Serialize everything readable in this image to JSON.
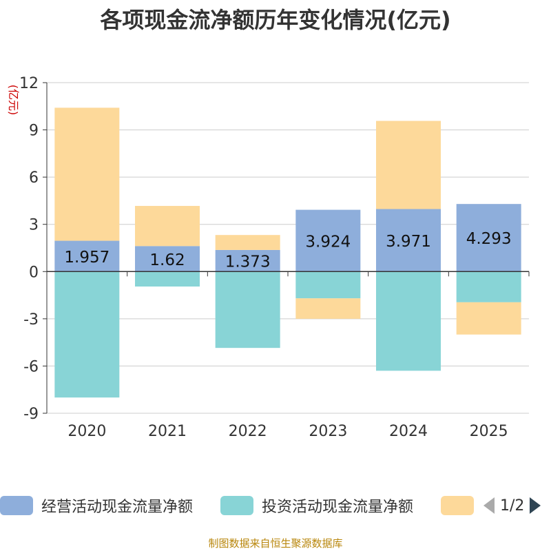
{
  "chart_data": {
    "type": "bar",
    "stacked": true,
    "title": "各项现金流净额历年变化情况(亿元)",
    "ylabel": "(亿元)",
    "xlabel": "",
    "categories": [
      "2020",
      "2021",
      "2022",
      "2023",
      "2024",
      "2025"
    ],
    "ylim": [
      -9,
      12
    ],
    "yticks": [
      12,
      9,
      6,
      3,
      0,
      -3,
      -6,
      -9
    ],
    "series": [
      {
        "name": "经营活动现金流量净额",
        "color": "#8eaedb",
        "values": [
          1.957,
          1.62,
          1.373,
          3.924,
          3.971,
          4.293
        ],
        "show_labels": true
      },
      {
        "name": "投资活动现金流量净额",
        "color": "#88d4d6",
        "values": [
          -8.0,
          -0.95,
          -4.85,
          -1.7,
          -6.3,
          -1.95
        ],
        "show_labels": false
      },
      {
        "name": "",
        "color": "#fdd99a",
        "values": [
          8.45,
          2.55,
          0.95,
          -1.3,
          5.6,
          -2.05
        ],
        "show_labels": false
      }
    ],
    "data_labels": [
      "1.957",
      "1.62",
      "1.373",
      "3.924",
      "3.971",
      "4.293"
    ],
    "grid": true,
    "legend_position": "bottom"
  },
  "legend": {
    "pager_text": "1/2",
    "prev_icon": "arrow-left-icon",
    "next_icon": "arrow-right-icon"
  },
  "source_note": "制图数据来自恒生聚源数据库",
  "colors": {
    "axis": "#333333",
    "grid": "#cccccc",
    "ylabel": "#cc0000",
    "pager_inactive": "#aaaaaa",
    "pager_active": "#2f4554"
  }
}
